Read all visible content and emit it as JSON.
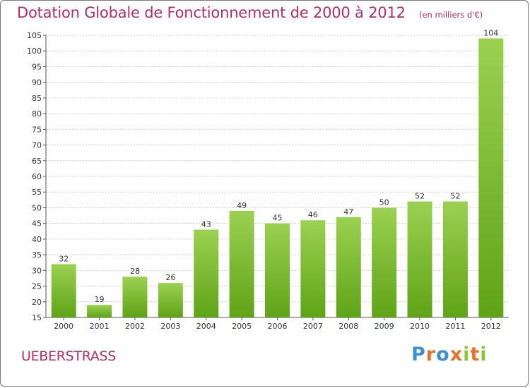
{
  "header": {
    "title": "Dotation Globale de Fonctionnement de 2000 à 2012",
    "subtitle": "(en milliers d'€)"
  },
  "footer": {
    "commune": "UEBERSTRASS",
    "logo_text": "Proxiti"
  },
  "colors": {
    "title": "#b03060",
    "bar_top": "#9bd151",
    "bar_bottom": "#5fa317",
    "grid": "#cccccc",
    "logo": [
      "#3a8fd6",
      "#e8732a",
      "#3a8fd6",
      "#e8732a",
      "#8cc63f",
      "#e8732a",
      "#8cc63f"
    ]
  },
  "chart_data": {
    "type": "bar",
    "categories": [
      "2000",
      "2001",
      "2002",
      "2003",
      "2004",
      "2005",
      "2006",
      "2007",
      "2008",
      "2009",
      "2010",
      "2011",
      "2012"
    ],
    "values": [
      32,
      19,
      28,
      26,
      43,
      49,
      45,
      46,
      47,
      50,
      52,
      52,
      104
    ],
    "ylim": [
      15,
      105
    ],
    "yticks": [
      15,
      20,
      25,
      30,
      35,
      40,
      45,
      50,
      55,
      60,
      65,
      70,
      75,
      80,
      85,
      90,
      95,
      100,
      105
    ],
    "grid": true,
    "legend": "none"
  }
}
